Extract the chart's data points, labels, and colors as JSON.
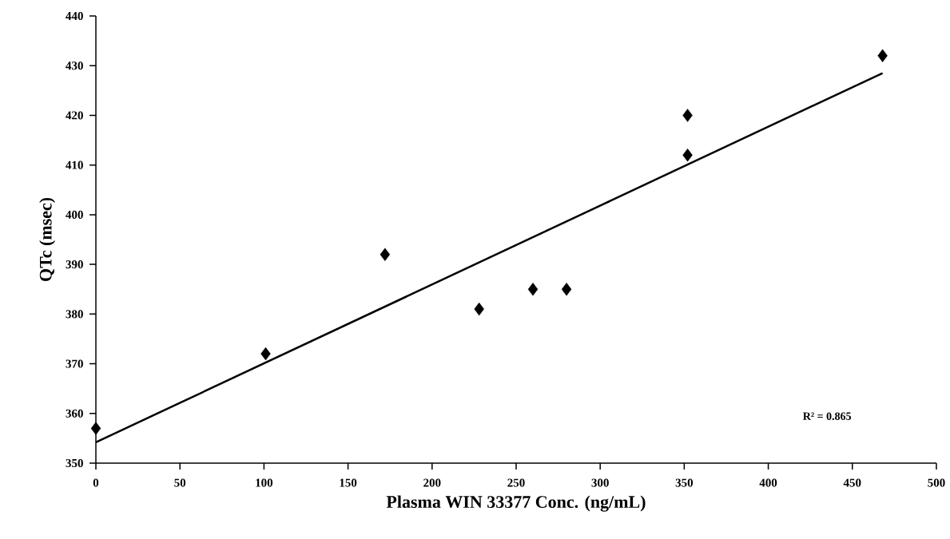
{
  "chart_data": {
    "type": "scatter",
    "xlabel": "Plasma WIN 33377 Conc. (ng/mL)",
    "ylabel": "QTc (msec)",
    "xlim": [
      0,
      500
    ],
    "ylim": [
      350,
      440
    ],
    "xticks": [
      0,
      50,
      100,
      150,
      200,
      250,
      300,
      350,
      400,
      450,
      500
    ],
    "yticks": [
      350,
      360,
      370,
      380,
      390,
      400,
      410,
      420,
      430,
      440
    ],
    "grid": false,
    "annotations": [
      "R² = 0.865"
    ],
    "series": [
      {
        "color": "#000000",
        "marker": "diamond",
        "x": [
          0,
          101,
          172,
          228,
          260,
          280,
          352,
          352,
          468
        ],
        "values": [
          357,
          372,
          392,
          381,
          385,
          385,
          420,
          412,
          432
        ]
      },
      {
        "type": "line",
        "color": "#000000",
        "x": [
          0,
          468
        ],
        "values": [
          354.2,
          428.5
        ],
        "line_style": "solid"
      }
    ]
  }
}
